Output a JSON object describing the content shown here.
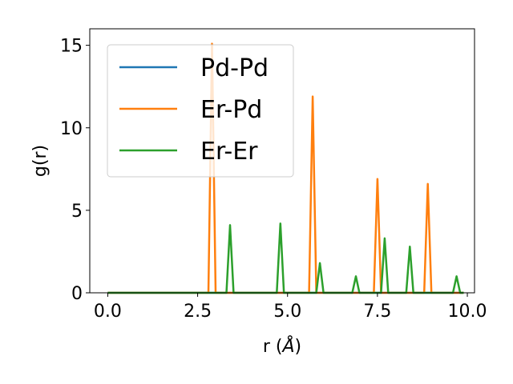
{
  "chart_data": {
    "type": "line",
    "title": "",
    "xlabel": "r (",
    "xlabel_symbol": "Å",
    "xlabel_close": ")",
    "ylabel": "g(r)",
    "xlim": [
      -0.5,
      10.2
    ],
    "ylim": [
      0,
      16
    ],
    "xticks": [
      0.0,
      2.5,
      5.0,
      7.5,
      10.0
    ],
    "xtick_labels": [
      "0.0",
      "2.5",
      "5.0",
      "7.5",
      "10.0"
    ],
    "yticks": [
      0,
      5,
      10,
      15
    ],
    "ytick_labels": [
      "0",
      "5",
      "10",
      "15"
    ],
    "grid": false,
    "legend_position": "upper-left",
    "series": [
      {
        "name": "Pd-Pd",
        "color": "#1f77b4",
        "points": [
          [
            0,
            0
          ],
          [
            9.9,
            0
          ]
        ]
      },
      {
        "name": "Er-Pd",
        "color": "#ff7f0e",
        "points": [
          [
            0,
            0
          ],
          [
            2.8,
            0
          ],
          [
            2.9,
            15.1
          ],
          [
            3.0,
            0
          ],
          [
            5.6,
            0
          ],
          [
            5.7,
            11.9
          ],
          [
            5.8,
            0
          ],
          [
            7.4,
            0
          ],
          [
            7.5,
            6.9
          ],
          [
            7.6,
            0
          ],
          [
            8.8,
            0
          ],
          [
            8.9,
            6.6
          ],
          [
            9.0,
            0
          ],
          [
            9.9,
            0
          ]
        ]
      },
      {
        "name": "Er-Er",
        "color": "#2ca02c",
        "points": [
          [
            0,
            0
          ],
          [
            3.3,
            0
          ],
          [
            3.4,
            4.1
          ],
          [
            3.5,
            0
          ],
          [
            4.7,
            0
          ],
          [
            4.8,
            4.2
          ],
          [
            4.9,
            0
          ],
          [
            5.8,
            0
          ],
          [
            5.9,
            1.8
          ],
          [
            6.0,
            0
          ],
          [
            6.8,
            0
          ],
          [
            6.9,
            1.0
          ],
          [
            7.0,
            0
          ],
          [
            7.6,
            0
          ],
          [
            7.7,
            3.3
          ],
          [
            7.8,
            0
          ],
          [
            8.3,
            0
          ],
          [
            8.4,
            2.8
          ],
          [
            8.5,
            0
          ],
          [
            9.6,
            0
          ],
          [
            9.7,
            1.0
          ],
          [
            9.8,
            0
          ],
          [
            9.9,
            0
          ]
        ]
      }
    ]
  }
}
